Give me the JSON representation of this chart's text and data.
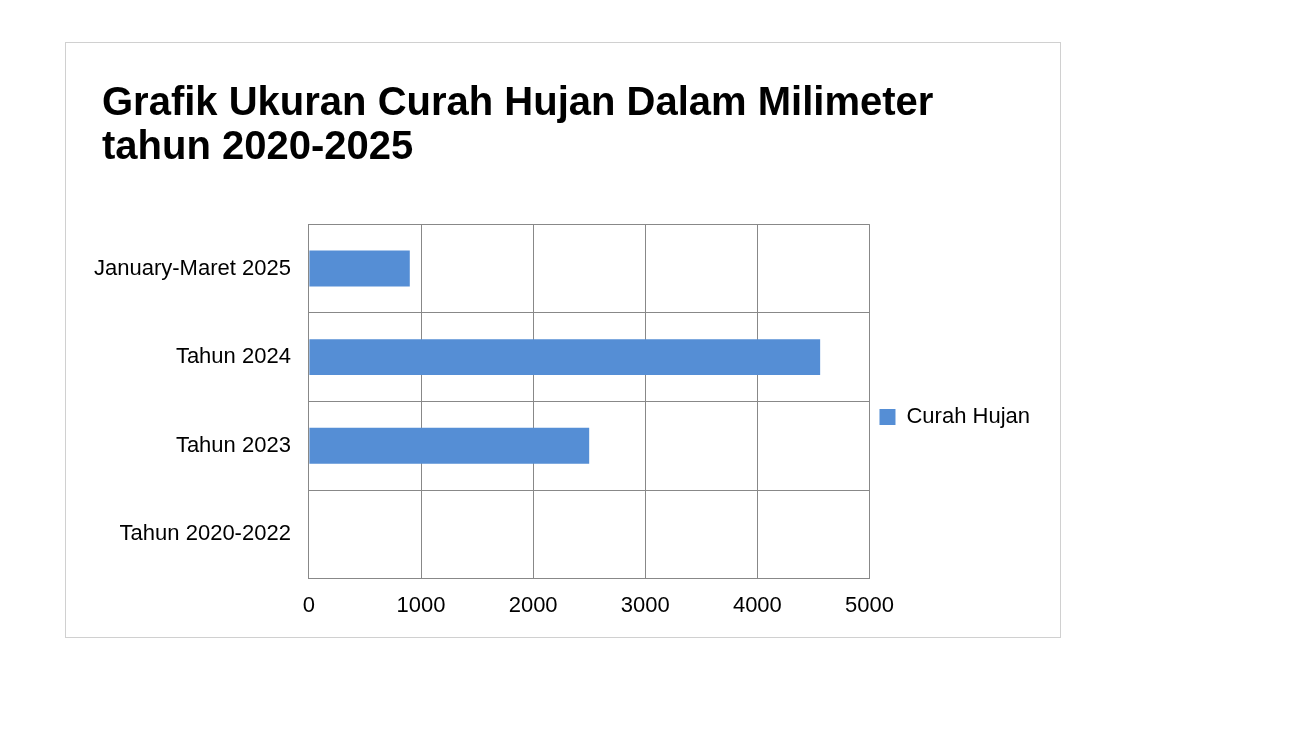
{
  "chart_data": {
    "type": "bar",
    "orientation": "horizontal",
    "title": "Grafik Ukuran Curah Hujan Dalam Milimeter tahun 2020-2025",
    "categories": [
      "January-Maret 2025",
      "Tahun 2024",
      "Tahun 2023",
      "Tahun 2020-2022"
    ],
    "series": [
      {
        "name": "Curah Hujan",
        "color": "#558ed5",
        "values": [
          900,
          4560,
          2500,
          0
        ]
      }
    ],
    "xlim": [
      0,
      5000
    ],
    "xticks": [
      0,
      1000,
      2000,
      3000,
      4000,
      5000
    ],
    "grid": true,
    "legend": "right"
  }
}
